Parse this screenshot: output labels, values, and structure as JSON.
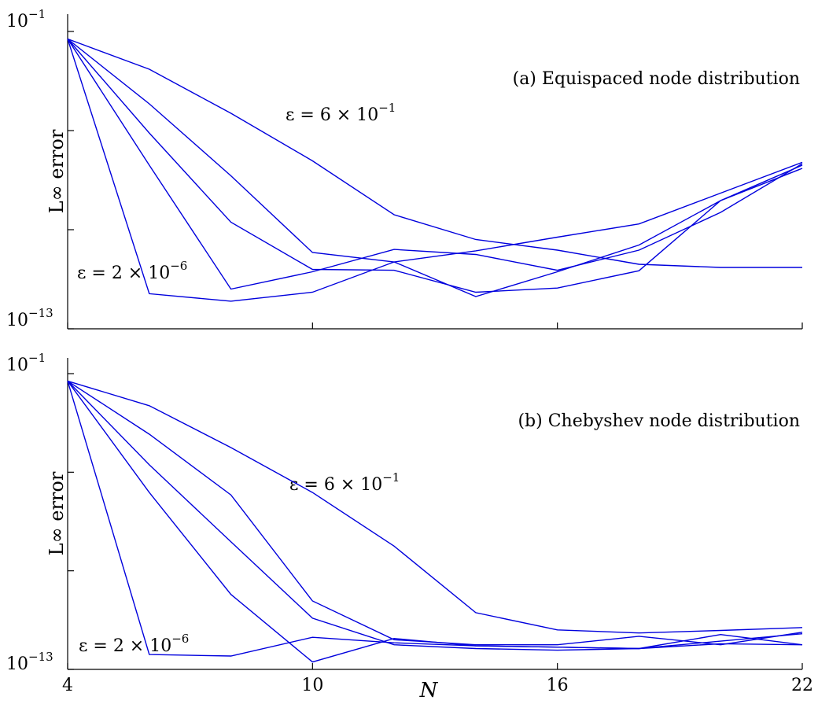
{
  "chart_data": [
    {
      "type": "line",
      "title": "(a) Equispaced node distribution",
      "xlabel": "",
      "ylabel": "L∞ error",
      "yscale": "log",
      "xlim": [
        4,
        22
      ],
      "ylim": [
        1e-13,
        0.1
      ],
      "x_ticks": [
        "4",
        "10",
        "16",
        "22"
      ],
      "y_tick_labels": [
        {
          "base": "10",
          "exp": "−1"
        },
        {
          "base": "10",
          "exp": "−13"
        }
      ],
      "annotations": [
        {
          "text_prefix": "ε = 6 × 10",
          "exp": "−1"
        },
        {
          "text_prefix": "ε = 2 × 10",
          "exp": "−6"
        }
      ],
      "x": [
        4,
        6,
        8,
        10,
        12,
        14,
        16,
        18,
        20,
        22
      ],
      "series": [
        {
          "values": [
            0.05,
            0.003,
            5e-05,
            6e-07,
            4e-09,
            4e-10,
            1.5e-10,
            4e-11,
            3e-11,
            3e-11
          ]
        },
        {
          "values": [
            0.05,
            0.00012,
            1.5e-07,
            1.2e-10,
            5e-11,
            2e-12,
            2e-11,
            2.4e-10,
            1.5e-08,
            3e-07
          ]
        },
        {
          "values": [
            0.05,
            8e-06,
            2e-09,
            2.5e-11,
            2.3e-11,
            3e-12,
            4.4e-12,
            2.2e-11,
            1.5e-08,
            4e-07
          ]
        },
        {
          "values": [
            0.05,
            4e-07,
            4e-12,
            2e-11,
            1.6e-10,
            1e-10,
            2.3e-11,
            1.5e-10,
            5e-09,
            4.6e-07
          ]
        },
        {
          "values": [
            0.05,
            2.6e-12,
            1.3e-12,
            3e-12,
            5e-11,
            1.4e-10,
            5e-10,
            1.7e-09,
            3e-08,
            5.2e-07
          ]
        }
      ]
    },
    {
      "type": "line",
      "title": "(b) Chebyshev node distribution",
      "xlabel": "N",
      "ylabel": "L∞ error",
      "yscale": "log",
      "xlim": [
        4,
        22
      ],
      "ylim": [
        1e-13,
        0.1
      ],
      "x_ticks": [
        "4",
        "10",
        "16",
        "22"
      ],
      "y_tick_labels": [
        {
          "base": "10",
          "exp": "−1"
        },
        {
          "base": "10",
          "exp": "−13"
        }
      ],
      "annotations": [
        {
          "text_prefix": "ε = 6 × 10",
          "exp": "−1"
        },
        {
          "text_prefix": "ε = 2 × 10",
          "exp": "−6"
        }
      ],
      "x": [
        4,
        6,
        8,
        10,
        12,
        14,
        16,
        18,
        20,
        22
      ],
      "series": [
        {
          "values": [
            0.05,
            0.005,
            0.0001,
            1.5e-06,
            1e-08,
            2e-11,
            4e-12,
            3e-12,
            3.8e-12,
            5e-12
          ]
        },
        {
          "values": [
            0.05,
            0.00035,
            1.2e-06,
            6e-11,
            1.6e-12,
            1e-12,
            1e-12,
            2.2e-12,
            1e-12,
            3.2e-12
          ]
        },
        {
          "values": [
            0.05,
            2e-05,
            1.5e-08,
            1.2e-11,
            1e-12,
            7e-13,
            6e-13,
            7e-13,
            1.4e-12,
            2.8e-12
          ]
        },
        {
          "values": [
            0.05,
            1.5e-06,
            1.1e-10,
            2e-13,
            1.8e-12,
            9e-13,
            8e-13,
            7e-13,
            1.1e-12,
            1e-12
          ]
        },
        {
          "values": [
            0.05,
            4e-13,
            3.5e-13,
            2e-12,
            1.2e-12,
            9e-13,
            8e-13,
            7e-13,
            2.6e-12,
            1e-12
          ]
        }
      ]
    }
  ]
}
